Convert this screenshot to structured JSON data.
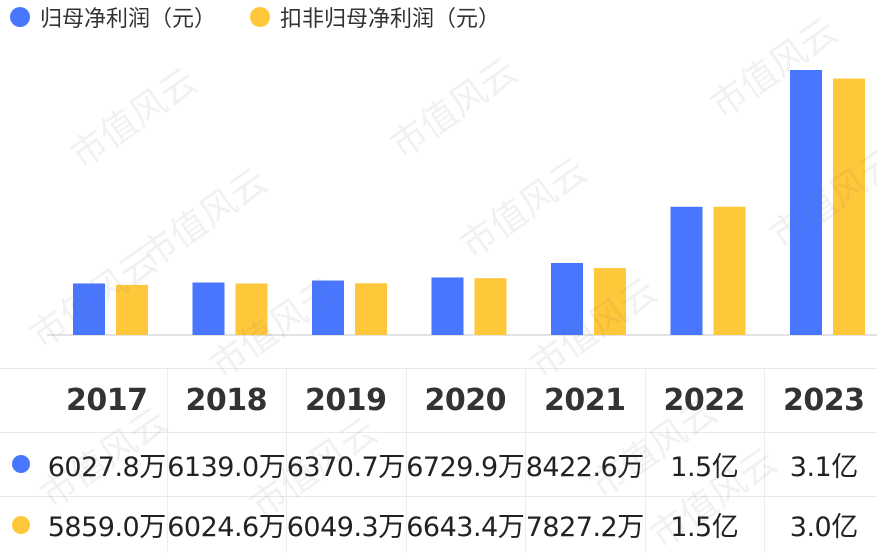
{
  "legend": [
    {
      "label": "归母净利润（元）",
      "color": "#4876ff"
    },
    {
      "label": "扣非归母净利润（元）",
      "color": "#ffc73a"
    }
  ],
  "watermark": "市值风云",
  "chart_data": {
    "type": "bar",
    "categories": [
      "2017",
      "2018",
      "2019",
      "2020",
      "2021",
      "2022",
      "2023"
    ],
    "series": [
      {
        "name": "归母净利润（元）",
        "color": "#4876ff",
        "values": [
          60278000,
          61390000,
          63707000,
          67299000,
          84226000,
          150000000,
          310000000
        ],
        "labels": [
          "6027.8万",
          "6139.0万",
          "6370.7万",
          "6729.9万",
          "8422.6万",
          "1.5亿",
          "3.1亿"
        ]
      },
      {
        "name": "扣非归母净利润（元）",
        "color": "#ffc73a",
        "values": [
          58590000,
          60246000,
          60493000,
          66434000,
          78272000,
          150000000,
          300000000
        ],
        "labels": [
          "5859.0万",
          "6024.6万",
          "6049.3万",
          "6643.4万",
          "7827.2万",
          "1.5亿",
          "3.0亿"
        ]
      }
    ],
    "ylim": [
      0,
      310000000
    ],
    "grid": false,
    "legend_position": "top-left"
  }
}
